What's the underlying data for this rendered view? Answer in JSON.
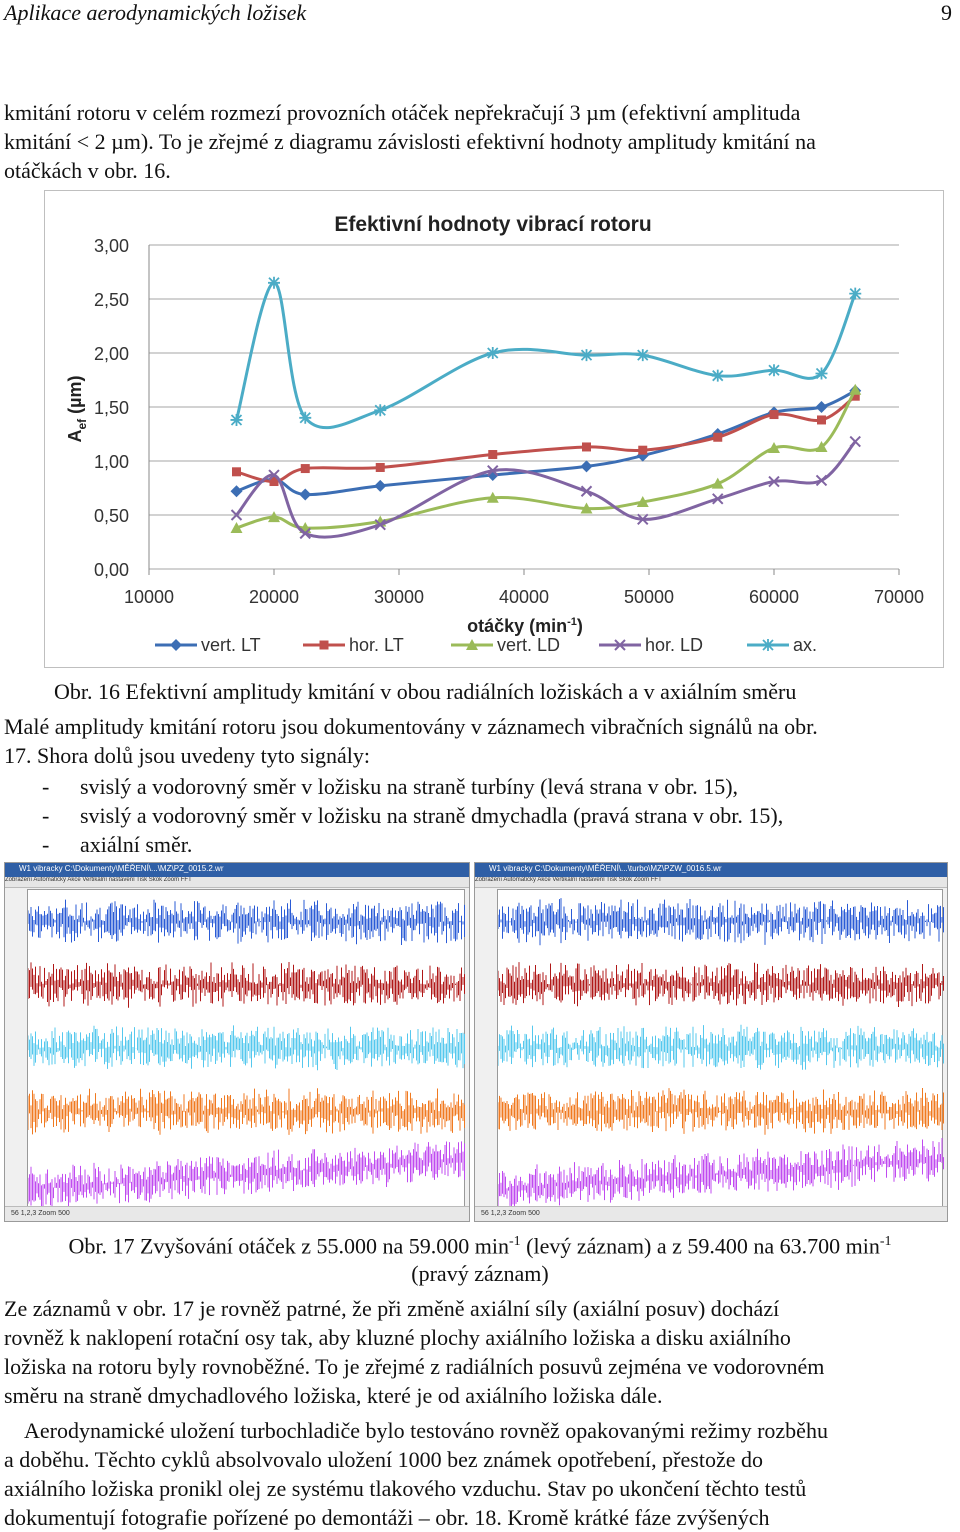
{
  "header": {
    "title": "Aplikace aerodynamických ložisek",
    "page_number": "9"
  },
  "para1": {
    "lines": [
      "kmitání rotoru v celém rozmezí provozních otáček nepřekračují 3 µm (efektivní amplituda",
      "kmitání < 2 µm). To je zřejmé z diagramu závislosti efektivní hodnoty amplitudy kmitání na",
      "otáčkách v obr. 16."
    ]
  },
  "chart_data": {
    "type": "line",
    "title": "Efektivní hodnoty vibrací rotoru",
    "ylabel_main": "A",
    "ylabel_sub": "ef",
    "ylabel_unit": " (µm)",
    "xlabel_main": "otáčky (min",
    "xlabel_sup": "-1",
    "xlabel_end": ")",
    "xlim": [
      10000,
      70000
    ],
    "ylim": [
      0,
      3
    ],
    "x_ticks": [
      "10000",
      "20000",
      "30000",
      "40000",
      "50000",
      "60000",
      "70000"
    ],
    "y_ticks": [
      "0,00",
      "0,50",
      "1,00",
      "1,50",
      "2,00",
      "2,50",
      "3,00"
    ],
    "legend_position": "bottom",
    "series": [
      {
        "name": "vert. LT",
        "color": "#3c6eb4",
        "marker": "diamond",
        "x": [
          17000,
          20000,
          22500,
          28500,
          37500,
          45000,
          49500,
          55500,
          60000,
          63800,
          66500
        ],
        "y": [
          0.72,
          0.83,
          0.69,
          0.77,
          0.87,
          0.95,
          1.05,
          1.25,
          1.45,
          1.5,
          1.65
        ]
      },
      {
        "name": "hor. LT",
        "color": "#c0504d",
        "marker": "square",
        "x": [
          17000,
          20000,
          22500,
          28500,
          37500,
          45000,
          49500,
          55500,
          60000,
          63800,
          66500
        ],
        "y": [
          0.9,
          0.81,
          0.93,
          0.94,
          1.06,
          1.13,
          1.1,
          1.22,
          1.43,
          1.38,
          1.6
        ]
      },
      {
        "name": "vert. LD",
        "color": "#9bbb59",
        "marker": "triangle",
        "x": [
          17000,
          20000,
          22500,
          28500,
          37500,
          45000,
          49500,
          55500,
          60000,
          63800,
          66500
        ],
        "y": [
          0.38,
          0.48,
          0.38,
          0.44,
          0.66,
          0.56,
          0.62,
          0.79,
          1.12,
          1.13,
          1.66
        ]
      },
      {
        "name": "hor. LD",
        "color": "#8064a2",
        "marker": "x",
        "x": [
          17000,
          20000,
          22500,
          28500,
          37500,
          45000,
          49500,
          55500,
          60000,
          63800,
          66500
        ],
        "y": [
          0.5,
          0.87,
          0.33,
          0.41,
          0.91,
          0.72,
          0.46,
          0.65,
          0.81,
          0.82,
          1.18
        ]
      },
      {
        "name": "ax.",
        "color": "#4bacc6",
        "marker": "star",
        "x": [
          17000,
          20000,
          22500,
          28500,
          37500,
          45000,
          49500,
          55500,
          60000,
          63800,
          66500
        ],
        "y": [
          1.38,
          2.65,
          1.4,
          1.47,
          2.0,
          1.98,
          1.98,
          1.79,
          1.84,
          1.81,
          2.55
        ]
      }
    ]
  },
  "caption16": "Obr. 16 Efektivní amplitudy kmitání v obou radiálních ložiskách a v axiálním směru",
  "para2": {
    "lines": [
      "Malé amplitudy kmitání rotoru jsou dokumentovány v záznamech vibračních signálů na obr.",
      "17. Shora dolů jsou uvedeny tyto signály:"
    ]
  },
  "bullets": [
    "svislý a vodorovný směr v ložisku na straně turbíny (levá strana v obr. 15),",
    "svislý a vodorovný směr v ložisku na straně dmychadla (pravá strana v obr. 15),",
    "axiální směr."
  ],
  "bullet_dash": "-",
  "recordings": {
    "left_title": "W1 vibracky C:\\Dokumenty\\MĚŘENÍ\\...\\MZ\\PZ_0015.2.wr",
    "right_title": "W1 vibracky C:\\Dokumenty\\MĚŘENÍ\\...\\turbo\\MZ\\PZW_0016.5.wr",
    "menu": "Zobrazení  Automatický  Akce  Vertikální nastavení  Tisk  Skok  Zoom  FFT",
    "status": "56  1,2,3  Zoom  500",
    "signal_colors": [
      "#2a5bd6",
      "#b01818",
      "#55c8ee",
      "#f07a20",
      "#c04bf0"
    ]
  },
  "caption17": {
    "line1_a": "Obr. 17 Zvyšování otáček z 55.000 na 59.000 min",
    "line1_sup1": "-1",
    "line1_b": " (levý záznam) a z 59.400 na 63.700 min",
    "line1_sup2": "-1",
    "line2": "(pravý záznam)"
  },
  "para3": {
    "lines": [
      "Ze záznamů v obr. 17 je rovněž patrné, že při změně axiální síly (axiální posuv) dochází",
      "rovněž k naklopení rotační osy tak, aby kluzné plochy axiálního ložiska a disku axiálního",
      "ložiska na rotoru byly rovnoběžné. To je zřejmé z radiálních posuvů zejména ve vodorovném",
      "směru na straně dmychadlového ložiska, které je od axiálního ložiska dále."
    ]
  },
  "para4": {
    "lines": [
      "Aerodynamické uložení turbochladiče bylo testováno rovněž opakovanými režimy rozběhu",
      "a doběhu. Těchto cyklů absolvovalo uložení 1000 bez známek opotřebení, přestože do",
      "axiálního ložiska pronikl olej ze systému tlakového vzduchu. Stav po ukončení těchto testů",
      "dokumentují fotografie pořízené po demontáži – obr. 18. Kromě krátké fáze zvýšených"
    ]
  }
}
